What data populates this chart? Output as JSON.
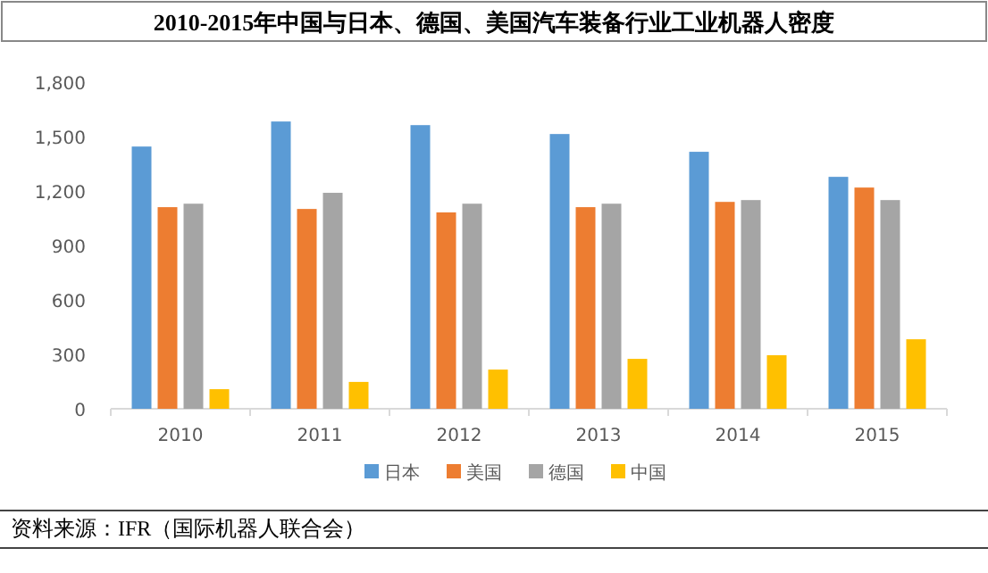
{
  "chart_data": {
    "type": "bar",
    "title": "2010-2015年中国与日本、德国、美国汽车装备行业工业机器人密度",
    "categories": [
      "2010",
      "2011",
      "2012",
      "2013",
      "2014",
      "2015"
    ],
    "series": [
      {
        "name": "日本",
        "color": "#5b9bd5",
        "values": [
          1445,
          1583,
          1563,
          1514,
          1416,
          1278
        ]
      },
      {
        "name": "美国",
        "color": "#ed7d31",
        "values": [
          1111,
          1101,
          1082,
          1111,
          1140,
          1219
        ]
      },
      {
        "name": "德国",
        "color": "#a5a5a5",
        "values": [
          1130,
          1190,
          1130,
          1130,
          1150,
          1150
        ]
      },
      {
        "name": "中国",
        "color": "#ffc000",
        "values": [
          108,
          148,
          216,
          275,
          295,
          383
        ]
      }
    ],
    "ylim": [
      0,
      1800
    ],
    "yticks": [
      {
        "value": 0,
        "label": "0"
      },
      {
        "value": 300,
        "label": "300"
      },
      {
        "value": 600,
        "label": "600"
      },
      {
        "value": 900,
        "label": "900"
      },
      {
        "value": 1200,
        "label": "1,200"
      },
      {
        "value": 1500,
        "label": "1,500"
      },
      {
        "value": 1800,
        "label": "1,800"
      }
    ],
    "grid": false,
    "legend": "bottom",
    "annotations": [
      "资料来源：IFR（国际机器人联合会）"
    ]
  }
}
